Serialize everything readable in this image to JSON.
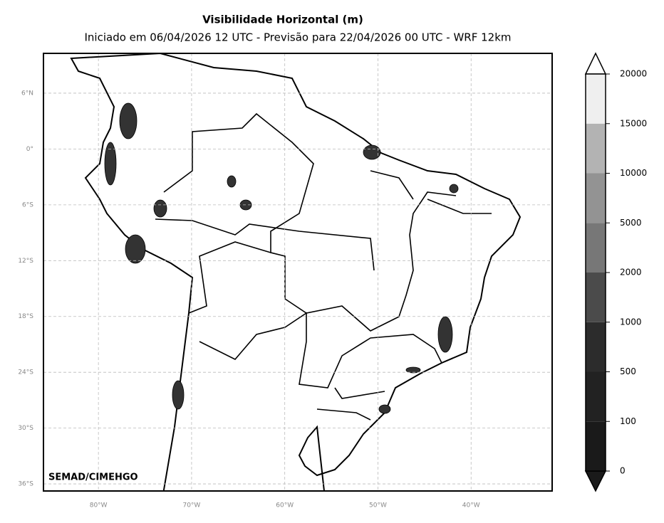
{
  "map": {
    "title": "Visibilidade Horizontal (m)",
    "subtitle": "Iniciado em 06/04/2026 12 UTC - Previsão para 22/04/2026 00 UTC - WRF 12km",
    "credit": "SEMAD/CIMEHGO",
    "xlim": [
      -85.9,
      -31.3
    ],
    "ylim": [
      -36.76,
      10.28
    ],
    "lon_ticks": [
      {
        "value": -80,
        "label": "80°W"
      },
      {
        "value": -70,
        "label": "70°W"
      },
      {
        "value": -60,
        "label": "60°W"
      },
      {
        "value": -50,
        "label": "50°W"
      },
      {
        "value": -40,
        "label": "40°W"
      }
    ],
    "lat_ticks": [
      {
        "value": 6,
        "label": "6°N"
      },
      {
        "value": 0,
        "label": "0°"
      },
      {
        "value": -6,
        "label": "6°S"
      },
      {
        "value": -12,
        "label": "12°S"
      },
      {
        "value": -18,
        "label": "18°S"
      },
      {
        "value": -24,
        "label": "24°S"
      },
      {
        "value": -30,
        "label": "30°S"
      },
      {
        "value": -36,
        "label": "36°S"
      }
    ],
    "grid": true
  },
  "colorbar": {
    "levels": [
      0,
      100,
      500,
      1000,
      2000,
      5000,
      10000,
      15000,
      20000
    ],
    "colors": [
      "#1a1a1a",
      "#222222",
      "#2c2c2c",
      "#4b4b4b",
      "#777777",
      "#939393",
      "#b3b3b3",
      "#efefef"
    ]
  }
}
